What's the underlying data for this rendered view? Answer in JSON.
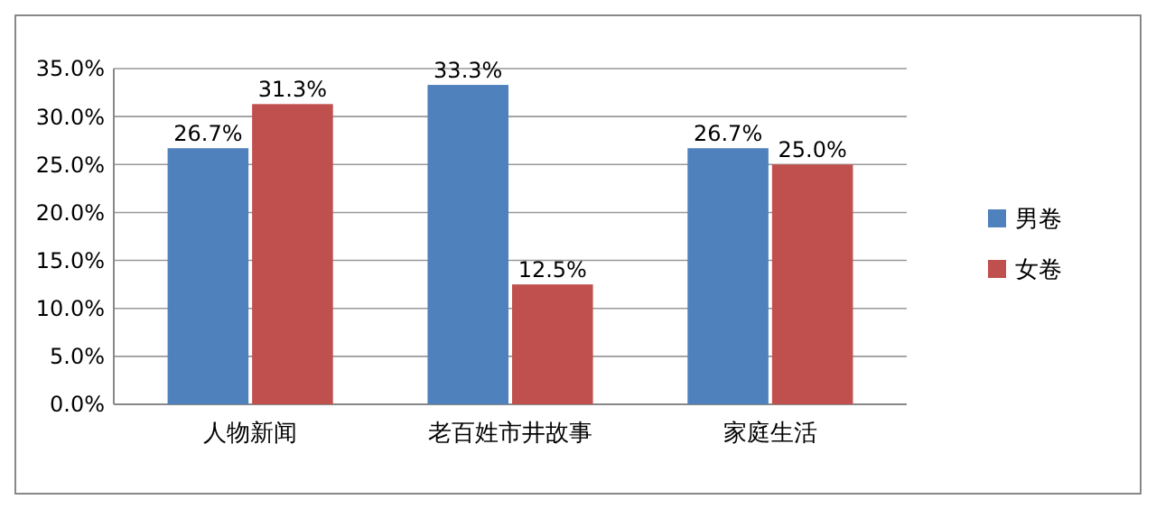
{
  "chart_data": {
    "type": "bar",
    "categories": [
      "人物新闻",
      "老百姓市井故事",
      "家庭生活"
    ],
    "series": [
      {
        "name": "男卷",
        "color": "#4f81bd",
        "values": [
          26.7,
          33.3,
          26.7
        ],
        "value_labels": [
          "26.7%",
          "33.3%",
          "26.7%"
        ]
      },
      {
        "name": "女卷",
        "color": "#c0504d",
        "values": [
          31.3,
          12.5,
          25.0
        ],
        "value_labels": [
          "31.3%",
          "12.5%",
          "25.0%"
        ]
      }
    ],
    "ylim": [
      0,
      35
    ],
    "yticks": [
      {
        "value": 0,
        "label": "0.0%"
      },
      {
        "value": 5,
        "label": "5.0%"
      },
      {
        "value": 10,
        "label": "10.0%"
      },
      {
        "value": 15,
        "label": "15.0%"
      },
      {
        "value": 20,
        "label": "20.0%"
      },
      {
        "value": 25,
        "label": "25.0%"
      },
      {
        "value": 30,
        "label": "30.0%"
      },
      {
        "value": 35,
        "label": "35.0%"
      }
    ],
    "grid": "y",
    "legend": "right"
  }
}
